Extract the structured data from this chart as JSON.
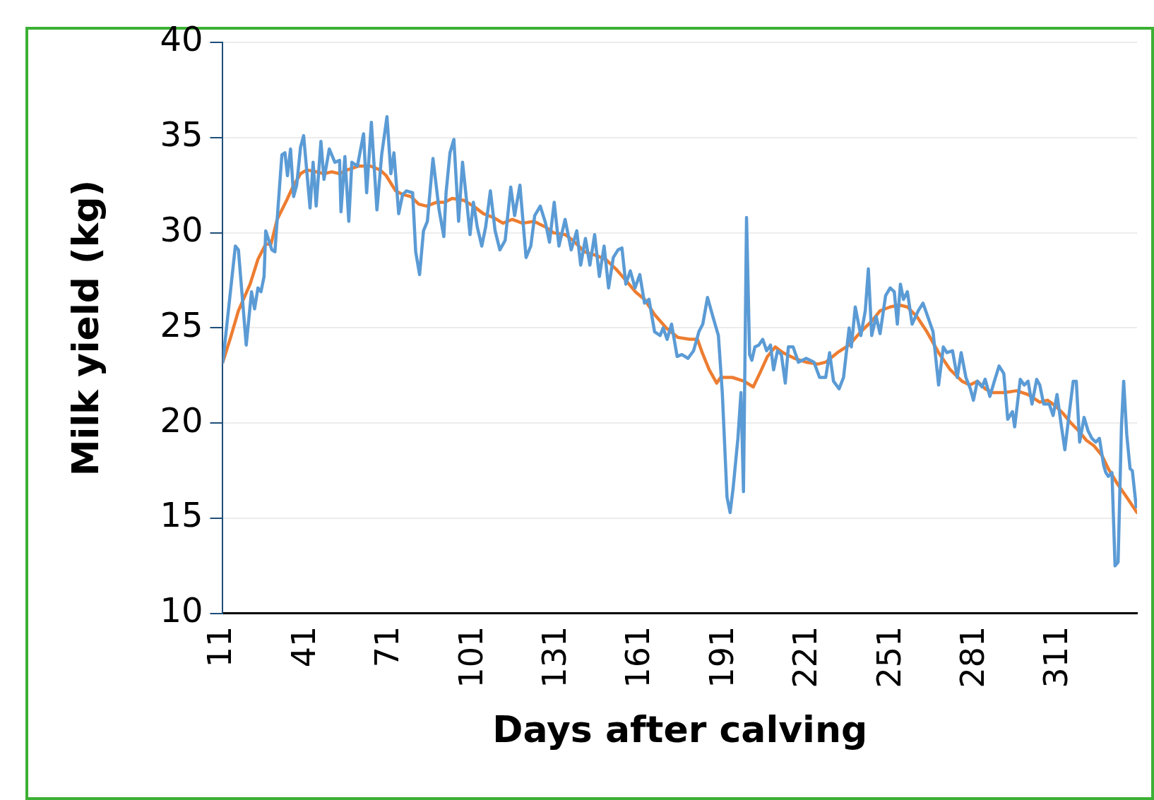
{
  "chart_data": {
    "type": "line",
    "xlabel": "Days after calving",
    "ylabel": "Milk yield (kg)",
    "xlim": [
      11,
      339
    ],
    "xticks": [
      11,
      41,
      71,
      101,
      131,
      161,
      191,
      221,
      251,
      281,
      311
    ],
    "ylim": [
      10,
      40
    ],
    "yticks": [
      10,
      15,
      20,
      25,
      30,
      35,
      40
    ],
    "grid": "y",
    "legend": false,
    "marker": "none",
    "line_style": "solid",
    "series": [
      {
        "color": "#5b9bd5",
        "x": [
          11,
          15.5,
          16.6,
          19.4,
          21.3,
          22.4,
          23.6,
          24.7,
          25.8,
          26.4,
          28.6,
          29.7,
          30.8,
          32.2,
          33.3,
          34.2,
          35.3,
          36.4,
          37.5,
          38.9,
          40,
          42.3,
          43.4,
          44.5,
          46.2,
          47.3,
          49.2,
          51.2,
          52.9,
          53.4,
          54.8,
          56.2,
          57.3,
          59.3,
          61.5,
          62.6,
          64.3,
          66.3,
          68,
          69.9,
          71.3,
          72.4,
          74.1,
          75.5,
          76.9,
          79.1,
          80.2,
          81.6,
          83,
          84.4,
          86.4,
          88.6,
          90.3,
          91.1,
          92.5,
          93.9,
          95.6,
          97,
          98.6,
          99.7,
          100.9,
          102.3,
          103.9,
          105.3,
          107,
          108.7,
          110.4,
          112.3,
          114.3,
          115.7,
          117.6,
          119.8,
          121.5,
          122.9,
          124.9,
          126.8,
          128.2,
          129.9,
          131.6,
          133.8,
          136,
          138,
          139.4,
          141.1,
          142.7,
          144.4,
          146.1,
          147.8,
          149.4,
          151.1,
          152.8,
          154.2,
          155.6,
          157.2,
          158.9,
          160.6,
          162.3,
          163.9,
          165.9,
          167.9,
          169,
          170.4,
          172,
          174,
          175.7,
          177.9,
          179.9,
          181.8,
          183.2,
          184.9,
          186.8,
          188.8,
          190.2,
          191.9,
          193,
          194.1,
          195.8,
          196.9,
          197.8,
          198.9,
          200,
          200.8,
          201.9,
          203.3,
          204.7,
          206.1,
          207.5,
          208.6,
          210,
          211.4,
          212.8,
          213.9,
          215.6,
          217.5,
          220.3,
          223.1,
          225.1,
          227.3,
          228.7,
          230.1,
          232.1,
          233.7,
          235.7,
          236.5,
          237.9,
          239.9,
          241.5,
          242.6,
          243.8,
          245.4,
          246.8,
          248.8,
          250.4,
          251.9,
          253,
          254.1,
          255.2,
          256.6,
          258.3,
          260.5,
          262.2,
          263.9,
          265.8,
          267.8,
          269.5,
          270.8,
          272.8,
          274.5,
          275.9,
          277.6,
          279.2,
          280.3,
          281.7,
          283.4,
          284.5,
          286.2,
          287.8,
          289.5,
          291.2,
          292.6,
          294.3,
          295.1,
          297.1,
          298.5,
          299.9,
          301.3,
          303,
          304.1,
          305.5,
          307.5,
          308.9,
          310.3,
          311.7,
          313.1,
          314.4,
          316.1,
          317.2,
          318.4,
          320,
          321.4,
          322.8,
          324.2,
          325.5,
          327,
          327.8,
          328.7,
          330,
          331.1,
          332.2,
          333.4,
          334.2,
          335.3,
          336.5,
          337.3,
          338.7
        ],
        "values": [
          23.2,
          29.3,
          29.1,
          24.1,
          26.9,
          26,
          27.1,
          26.9,
          27.7,
          30.1,
          29.1,
          29,
          31.3,
          34.1,
          34.2,
          33,
          34.4,
          31.9,
          32.5,
          34.5,
          35.1,
          31.3,
          33.7,
          31.4,
          34.8,
          32.8,
          34.4,
          33.7,
          33.8,
          31.1,
          34,
          30.6,
          33.7,
          33.5,
          35.2,
          32.1,
          35.8,
          31.2,
          34.1,
          36.1,
          33.1,
          34.2,
          31,
          32,
          32.2,
          32.1,
          29,
          27.8,
          30.1,
          30.6,
          33.9,
          31.2,
          29.8,
          32.1,
          34.2,
          34.9,
          30.6,
          33.7,
          31.5,
          29.9,
          31.6,
          30.3,
          29.3,
          30.3,
          32.2,
          30.1,
          29.1,
          29.6,
          32.4,
          30.9,
          32.5,
          28.7,
          29.3,
          30.9,
          31.4,
          30.5,
          29.5,
          31.6,
          29.3,
          30.7,
          29.1,
          30.1,
          28.3,
          29.7,
          28.3,
          29.9,
          27.7,
          29.3,
          27.1,
          28.7,
          29.1,
          29.2,
          27.3,
          28,
          27.1,
          27.8,
          26.3,
          26.5,
          24.8,
          24.6,
          25,
          24.4,
          25.2,
          23.5,
          23.6,
          23.4,
          23.8,
          24.8,
          25.2,
          26.6,
          25.6,
          24.6,
          21.6,
          16.1,
          15.3,
          16.6,
          19.2,
          21.6,
          16.4,
          30.8,
          23.6,
          23.3,
          24,
          24.1,
          24.4,
          23.8,
          24.1,
          22.8,
          23.8,
          23.6,
          22.1,
          24,
          24,
          23.2,
          23.4,
          23.2,
          22.4,
          22.4,
          23.7,
          22.2,
          21.8,
          22.4,
          25,
          24,
          26.1,
          24.6,
          25.9,
          28.1,
          24.6,
          25.6,
          24.7,
          26.7,
          27.1,
          26.9,
          25.2,
          27.3,
          26.5,
          26.9,
          25.2,
          25.9,
          26.3,
          25.6,
          24.8,
          22,
          24,
          23.7,
          23.8,
          22.4,
          23.7,
          22.4,
          21.8,
          21.2,
          22.2,
          21.9,
          22.3,
          21.4,
          22.2,
          23,
          22.6,
          20.2,
          20.6,
          19.8,
          22.3,
          22,
          22.2,
          21,
          22.3,
          22,
          21,
          21,
          20.4,
          21.5,
          20,
          18.6,
          20.2,
          22.2,
          22.2,
          19,
          20.3,
          19.6,
          19.2,
          19,
          19.2,
          17.8,
          17.4,
          17.2,
          17.4,
          12.5,
          12.7,
          19.8,
          22.2,
          19.4,
          17.6,
          17.5,
          15.6
        ]
      },
      {
        "color": "#ed7d31",
        "x": [
          11,
          13.8,
          16.6,
          20.8,
          23.6,
          26.4,
          28.3,
          30.5,
          33.9,
          36.1,
          38.9,
          41.1,
          44.5,
          47.3,
          50.1,
          52.9,
          55.7,
          59.8,
          64,
          67.4,
          69.6,
          73,
          75.7,
          78.5,
          81.3,
          84.1,
          87.8,
          90.5,
          93.3,
          97.5,
          100.9,
          104.5,
          108.1,
          111.5,
          114.8,
          118.5,
          122.6,
          126.8,
          129.6,
          133.8,
          136.6,
          140.8,
          145,
          148.4,
          152,
          155.6,
          159,
          162.3,
          165.9,
          170.1,
          174.3,
          178.5,
          181.3,
          183,
          185.5,
          188.2,
          189.6,
          193.8,
          198,
          201.3,
          203.6,
          206.4,
          209.2,
          212,
          216.1,
          220.3,
          224.5,
          227.3,
          231.5,
          235.7,
          239.9,
          244.1,
          246.8,
          250.4,
          253.8,
          256.6,
          260,
          263.6,
          267.8,
          272,
          276.2,
          279,
          281.7,
          284.5,
          287.3,
          291.5,
          295.7,
          299.9,
          304.1,
          306.9,
          309.7,
          312.5,
          315.3,
          318,
          320.8,
          323.6,
          326.4,
          328.7,
          332,
          335.3,
          337.6,
          339
        ],
        "values": [
          23.2,
          24.5,
          25.9,
          27.3,
          28.6,
          29.4,
          29.4,
          30.7,
          31.7,
          32.4,
          33.1,
          33.3,
          33.2,
          33.1,
          33.2,
          33.1,
          33.3,
          33.5,
          33.5,
          33.3,
          33,
          32.2,
          32,
          31.9,
          31.5,
          31.4,
          31.6,
          31.6,
          31.8,
          31.7,
          31.4,
          31,
          30.8,
          30.5,
          30.7,
          30.5,
          30.6,
          30.3,
          30,
          29.9,
          29.6,
          29,
          28.8,
          28.6,
          28.1,
          27.5,
          26.9,
          26.5,
          25.7,
          25,
          24.5,
          24.4,
          24.4,
          23.7,
          22.8,
          22.1,
          22.4,
          22.4,
          22.2,
          21.9,
          22.6,
          23.5,
          24,
          23.7,
          23.4,
          23.2,
          23.1,
          23.2,
          23.7,
          24.1,
          24.8,
          25.4,
          25.9,
          26.1,
          26.2,
          26.1,
          25.6,
          24.8,
          23.7,
          22.8,
          22.2,
          22,
          22.2,
          21.8,
          21.6,
          21.6,
          21.7,
          21.5,
          21.1,
          21.2,
          20.9,
          20.5,
          20,
          19.6,
          19.1,
          18.8,
          18.3,
          17.6,
          16.8,
          16.1,
          15.6,
          15.3
        ]
      }
    ]
  }
}
